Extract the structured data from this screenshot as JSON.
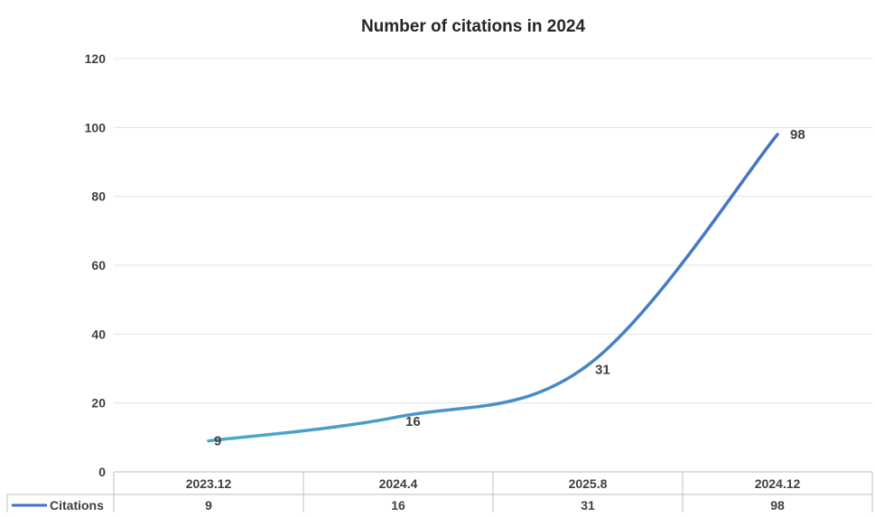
{
  "chart_data": {
    "type": "line",
    "title": "Number of citations in 2024",
    "xlabel": "",
    "ylabel": "",
    "categories": [
      "2023.12",
      "2024.4",
      "2025.8",
      "2024.12"
    ],
    "series": [
      {
        "name": "Citations",
        "values": [
          9,
          16,
          31,
          98
        ],
        "line_color_start": "#4BACC6",
        "line_color_end": "#4472C4"
      }
    ],
    "y_ticks": [
      "0",
      "20",
      "40",
      "60",
      "80",
      "100",
      "120"
    ],
    "ylim": [
      0,
      120
    ],
    "grid": true,
    "smooth": true,
    "data_labels": true,
    "legend": "data-table-row-left",
    "data_table": true,
    "colors": {
      "grid": "#E3E3E3",
      "axis": "#BFBFBF",
      "text": "#404040",
      "title": "#262626"
    }
  }
}
